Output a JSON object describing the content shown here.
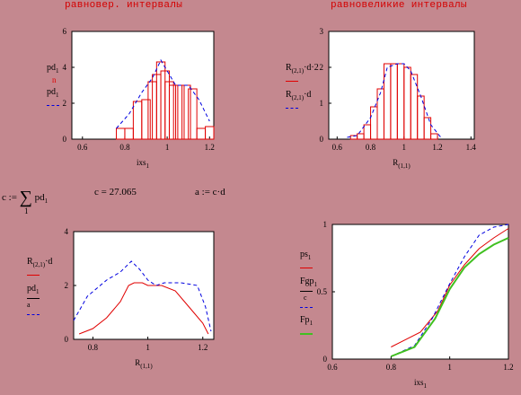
{
  "headers": {
    "left": "равновер. интервалы",
    "right": "равновеликие интервалы"
  },
  "formulas": {
    "c_def_lhs": "c :=",
    "c_def_sum": "∑",
    "c_def_term": "pd",
    "c_def_sub": "1",
    "c_def_index": "1",
    "c_value": "c = 27.065",
    "a_def": "a := c·d"
  },
  "colors": {
    "red": "#e00000",
    "blue": "#0000e0",
    "green": "#40c020",
    "bg": "#c4888f"
  },
  "chart_data": [
    {
      "type": "bar",
      "id": "top-left",
      "xlabel": "ixs",
      "xlabel_sub": "1",
      "xlim": [
        0.55,
        1.22
      ],
      "ylim": [
        0,
        6
      ],
      "xticks": [
        "0.6",
        "0.8",
        "1",
        "1.2"
      ],
      "yticks": [
        "0",
        "2",
        "4",
        "6"
      ],
      "bars_x": [
        0.78,
        0.82,
        0.86,
        0.9,
        0.93,
        0.95,
        0.97,
        0.99,
        1.01,
        1.03,
        1.06,
        1.09,
        1.12,
        1.16,
        1.2
      ],
      "bars_y": [
        0.6,
        0.6,
        2.1,
        2.2,
        3.2,
        3.6,
        4.3,
        3.8,
        3.2,
        3.0,
        3.0,
        3.0,
        2.8,
        0.6,
        0.7
      ],
      "line_x": [
        0.76,
        0.82,
        0.88,
        0.93,
        0.97,
        1.0,
        1.04,
        1.1,
        1.15,
        1.2
      ],
      "line_y": [
        0.6,
        1.4,
        2.6,
        3.4,
        4.4,
        3.8,
        3.0,
        3.0,
        2.2,
        1.0
      ],
      "legend": [
        {
          "label": "pd",
          "sub": "1",
          "mark": "n",
          "color": "#e00000"
        },
        {
          "label": "pd",
          "sub": "1",
          "mark": "dash",
          "color": "#0000e0"
        }
      ]
    },
    {
      "type": "bar",
      "id": "top-right",
      "xlabel": "R",
      "xlabel_sub": "(1,1)",
      "xlim": [
        0.55,
        1.42
      ],
      "ylim": [
        0,
        3
      ],
      "xticks": [
        "0.6",
        "0.8",
        "1",
        "1.2",
        "1.4"
      ],
      "yticks": [
        "0",
        "1",
        "2",
        "3"
      ],
      "bars_x": [
        0.7,
        0.74,
        0.78,
        0.82,
        0.86,
        0.9,
        0.94,
        0.98,
        1.02,
        1.06,
        1.1,
        1.14,
        1.18
      ],
      "bars_y": [
        0.1,
        0.15,
        0.4,
        0.9,
        1.4,
        2.1,
        2.1,
        2.1,
        2.0,
        1.8,
        1.2,
        0.6,
        0.15
      ],
      "line_x": [
        0.66,
        0.72,
        0.8,
        0.86,
        0.9,
        0.96,
        1.0,
        1.04,
        1.1,
        1.16,
        1.22
      ],
      "line_y": [
        0.05,
        0.1,
        0.6,
        1.3,
        2.0,
        2.1,
        2.1,
        1.9,
        1.2,
        0.4,
        0.05
      ],
      "legend": [
        {
          "label": "R",
          "sub": "(2,1)",
          "suffix": "·d·2",
          "color": "#e00000"
        },
        {
          "label": "R",
          "sub": "(2,1)",
          "suffix": "·d",
          "color": "#0000e0"
        }
      ]
    },
    {
      "type": "line",
      "id": "bottom-left",
      "xlabel": "R",
      "xlabel_sub": "(1,1)",
      "xlim": [
        0.73,
        1.24
      ],
      "ylim": [
        0,
        4
      ],
      "xticks": [
        "0.8",
        "1",
        "1.2"
      ],
      "yticks": [
        "0",
        "2",
        "4"
      ],
      "series": [
        {
          "x": [
            0.75,
            0.8,
            0.85,
            0.9,
            0.93,
            0.95,
            0.98,
            1.0,
            1.05,
            1.1,
            1.15,
            1.2,
            1.22
          ],
          "y": [
            0.2,
            0.4,
            0.8,
            1.4,
            2.0,
            2.1,
            2.1,
            2.0,
            2.0,
            1.8,
            1.2,
            0.6,
            0.2
          ],
          "color": "#e00000",
          "dash": ""
        },
        {
          "x": [
            0.73,
            0.78,
            0.85,
            0.9,
            0.94,
            0.97,
            1.0,
            1.03,
            1.06,
            1.12,
            1.18,
            1.21,
            1.23
          ],
          "y": [
            0.7,
            1.6,
            2.2,
            2.5,
            2.9,
            2.6,
            2.2,
            2.0,
            2.1,
            2.1,
            2.0,
            1.2,
            0.3
          ],
          "color": "#0000e0",
          "dash": "4,3"
        }
      ],
      "legend": [
        {
          "label": "R",
          "sub": "(2,1)",
          "suffix": "·d",
          "color": "#e00000"
        },
        {
          "label": "pd",
          "sub": "1",
          "denominator": "a",
          "color": "#0000e0"
        }
      ]
    },
    {
      "type": "line",
      "id": "bottom-right",
      "xlabel": "ixs",
      "xlabel_sub": "1",
      "xlim": [
        0.6,
        1.2
      ],
      "ylim": [
        0,
        1
      ],
      "xticks": [
        "0.6",
        "0.8",
        "1",
        "1.2"
      ],
      "yticks": [
        "0",
        "0.5",
        "1"
      ],
      "series": [
        {
          "x": [
            0.8,
            0.9,
            0.96,
            1.0,
            1.05,
            1.1,
            1.15,
            1.2
          ],
          "y": [
            0.09,
            0.2,
            0.36,
            0.55,
            0.7,
            0.82,
            0.9,
            0.97
          ],
          "color": "#e00000",
          "dash": ""
        },
        {
          "x": [
            0.8,
            0.88,
            0.94,
            1.0,
            1.05,
            1.1,
            1.15,
            1.2
          ],
          "y": [
            0.02,
            0.1,
            0.3,
            0.56,
            0.76,
            0.92,
            0.98,
            1.0
          ],
          "color": "#0000e0",
          "dash": "4,3"
        },
        {
          "x": [
            0.8,
            0.88,
            0.95,
            1.0,
            1.05,
            1.1,
            1.15,
            1.2
          ],
          "y": [
            0.02,
            0.09,
            0.3,
            0.52,
            0.68,
            0.78,
            0.85,
            0.9
          ],
          "color": "#40c020",
          "dash": ""
        }
      ],
      "legend": [
        {
          "label": "ps",
          "sub": "1",
          "color": "#e00000"
        },
        {
          "label": "Fgp",
          "sub": "1",
          "denominator": "c",
          "color": "#0000e0"
        },
        {
          "label": "Fp",
          "sub": "1",
          "color": "#40c020"
        }
      ]
    }
  ]
}
